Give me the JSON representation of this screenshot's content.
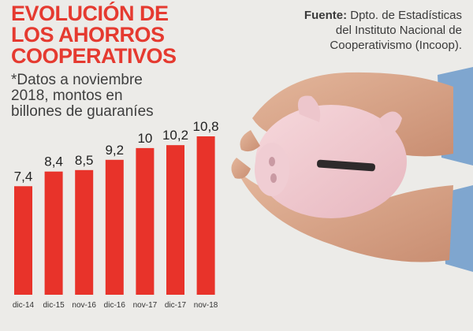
{
  "title_lines": [
    "EVOLUCIÓN DE",
    "LOS AHORROS",
    "COOPERATIVOS"
  ],
  "subtitle_lines": [
    "*Datos a noviembre",
    "2018, montos en",
    "billones de guaraníes"
  ],
  "source": {
    "label": "Fuente:",
    "lines": [
      "Dpto. de Estadísticas",
      "del Instituto Nacional de",
      "Cooperativismo (Incoop)."
    ]
  },
  "colors": {
    "bar": "#e8332a",
    "title": "#e53a30",
    "text": "#222222"
  },
  "chart_data": {
    "type": "bar",
    "title": "EVOLUCIÓN DE LOS AHORROS COOPERATIVOS",
    "xlabel": "",
    "ylabel": "",
    "categories": [
      "dic-14",
      "dic-15",
      "nov-16",
      "dic-16",
      "nov-17",
      "dic-17",
      "nov-18"
    ],
    "values": [
      7.4,
      8.4,
      8.5,
      9.2,
      10,
      10.2,
      10.8
    ],
    "value_labels": [
      "7,4",
      "8,4",
      "8,5",
      "9,2",
      "10",
      "10,2",
      "10,8"
    ],
    "ylim": [
      0,
      10.8
    ],
    "grid": false,
    "legend": "none"
  }
}
